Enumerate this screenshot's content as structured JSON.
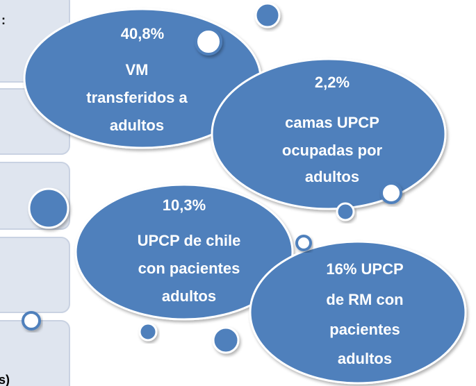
{
  "side_labels": [
    ":",
    "s)"
  ],
  "bubbles": [
    {
      "lines": [
        "40,8%",
        "VM",
        "transferidos a",
        "adultos"
      ]
    },
    {
      "lines": [
        "2,2%",
        "camas  UPCP",
        "ocupadas por",
        "adultos"
      ]
    },
    {
      "lines": [
        "10,3%",
        "UPCP de chile",
        "con pacientes",
        "adultos"
      ]
    },
    {
      "lines": [
        "16% UPCP",
        "de RM con",
        "pacientes",
        "adultos"
      ]
    }
  ]
}
